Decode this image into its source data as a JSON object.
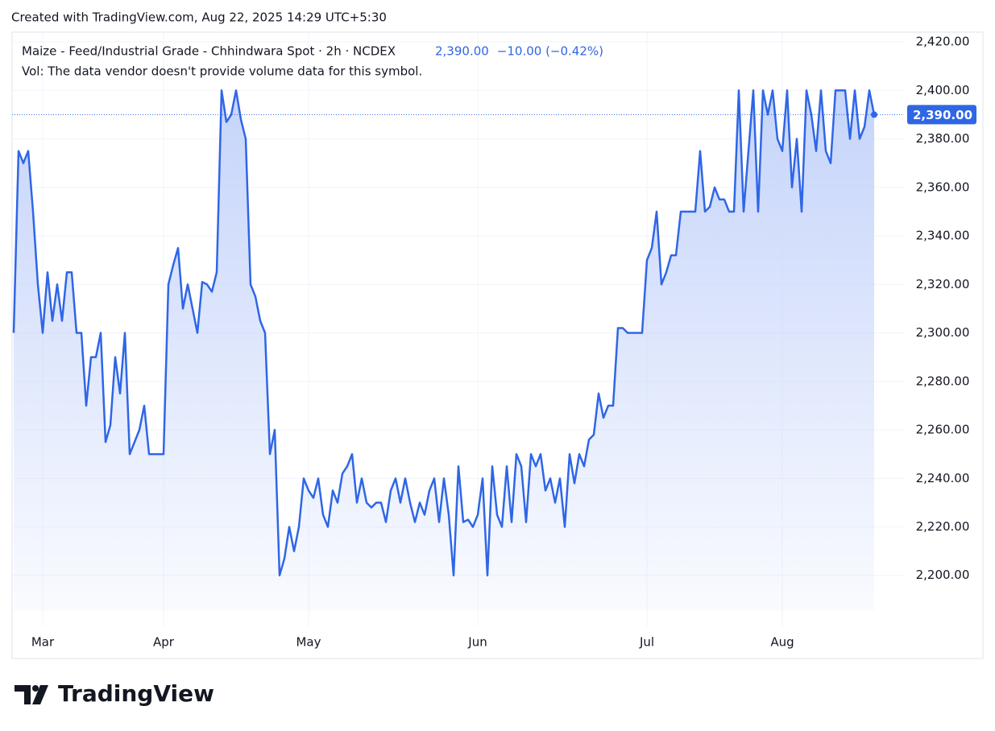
{
  "header": {
    "credit": "Created with TradingView.com, Aug 22, 2025 14:29 UTC+5:30"
  },
  "chart_data": {
    "type": "area",
    "title": "Maize - Feed/Industrial Grade - Chhindwara Spot · 2h · NCDEX",
    "price": "2,390.00",
    "change": "−10.00 (−0.42%)",
    "subtitle": "Vol: The data vendor doesn't provide volume data for this symbol.",
    "last_value_label": "2,390.00",
    "color": "#2f66e6",
    "values": [
      2300,
      2375,
      2370,
      2375,
      2350,
      2320,
      2300,
      2325,
      2305,
      2320,
      2305,
      2325,
      2325,
      2300,
      2300,
      2270,
      2290,
      2290,
      2300,
      2255,
      2262,
      2290,
      2275,
      2300,
      2250,
      2255,
      2260,
      2270,
      2250,
      2250,
      2250,
      2250,
      2320,
      2328,
      2335,
      2310,
      2320,
      2310,
      2300,
      2321,
      2320,
      2317,
      2325,
      2400,
      2387,
      2390,
      2400,
      2388,
      2380,
      2320,
      2315,
      2305,
      2300,
      2250,
      2260,
      2200,
      2207,
      2220,
      2210,
      2220,
      2240,
      2235,
      2232,
      2240,
      2225,
      2220,
      2235,
      2230,
      2242,
      2245,
      2250,
      2230,
      2240,
      2230,
      2228,
      2230,
      2230,
      2222,
      2235,
      2240,
      2230,
      2240,
      2230,
      2222,
      2230,
      2225,
      2235,
      2240,
      2222,
      2240,
      2225,
      2200,
      2245,
      2222,
      2223,
      2220,
      2225,
      2240,
      2200,
      2245,
      2225,
      2220,
      2245,
      2222,
      2250,
      2245,
      2222,
      2250,
      2245,
      2250,
      2235,
      2240,
      2230,
      2240,
      2220,
      2250,
      2238,
      2250,
      2245,
      2256,
      2258,
      2275,
      2265,
      2270,
      2270,
      2302,
      2302,
      2300,
      2300,
      2300,
      2300,
      2330,
      2335,
      2350,
      2320,
      2325,
      2332,
      2332,
      2350,
      2350,
      2350,
      2350,
      2375,
      2350,
      2352,
      2360,
      2355,
      2355,
      2350,
      2350,
      2400,
      2350,
      2375,
      2400,
      2350,
      2400,
      2390,
      2400,
      2380,
      2375,
      2400,
      2360,
      2380,
      2350,
      2400,
      2390,
      2375,
      2400,
      2375,
      2370,
      2400,
      2400,
      2400,
      2380,
      2400,
      2380,
      2385,
      2400,
      2390
    ],
    "xlim": [
      0,
      184
    ],
    "xticks": [
      {
        "value": 6,
        "label": "Mar"
      },
      {
        "value": 31,
        "label": "Apr"
      },
      {
        "value": 61,
        "label": "May"
      },
      {
        "value": 96,
        "label": "Jun"
      },
      {
        "value": 131,
        "label": "Jul"
      },
      {
        "value": 159,
        "label": "Aug"
      }
    ],
    "ylim": [
      2179,
      2424
    ],
    "yticks": [
      {
        "value": 2200,
        "label": "2,200.00"
      },
      {
        "value": 2220,
        "label": "2,220.00"
      },
      {
        "value": 2240,
        "label": "2,240.00"
      },
      {
        "value": 2260,
        "label": "2,260.00"
      },
      {
        "value": 2280,
        "label": "2,280.00"
      },
      {
        "value": 2300,
        "label": "2,300.00"
      },
      {
        "value": 2320,
        "label": "2,320.00"
      },
      {
        "value": 2340,
        "label": "2,340.00"
      },
      {
        "value": 2360,
        "label": "2,360.00"
      },
      {
        "value": 2380,
        "label": "2,380.00"
      },
      {
        "value": 2400,
        "label": "2,400.00"
      },
      {
        "value": 2420,
        "label": "2,420.00"
      }
    ],
    "grid": true
  },
  "footer": {
    "logo": "TradingView"
  }
}
